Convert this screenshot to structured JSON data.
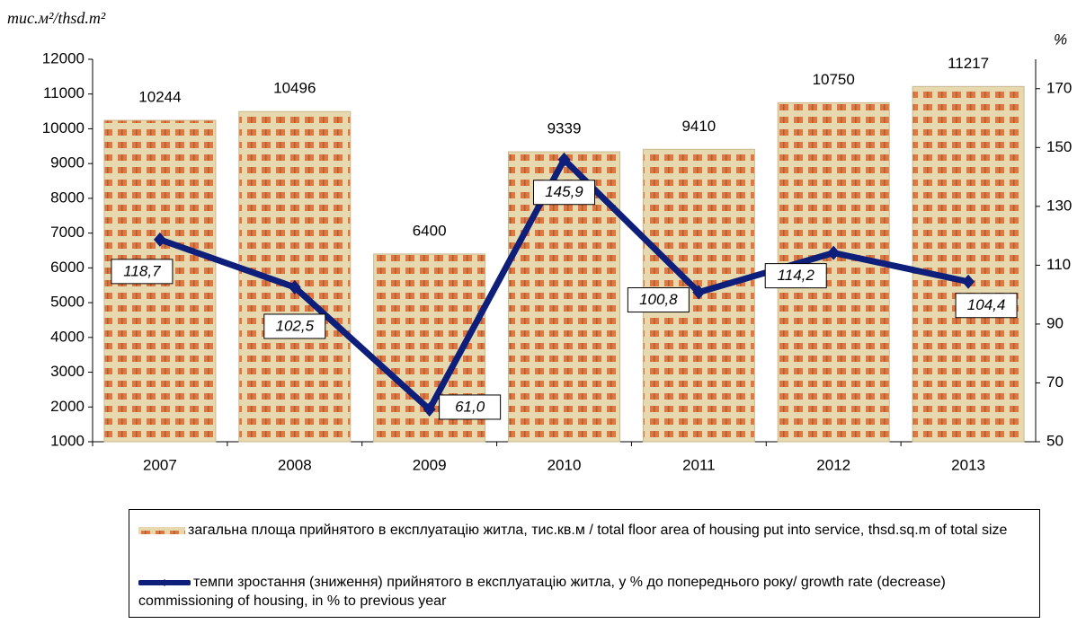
{
  "chart_data": {
    "type": "bar-line",
    "y_axis_label": "тис.м²/thsd.m²",
    "y2_axis_label": "%",
    "categories": [
      "2007",
      "2008",
      "2009",
      "2010",
      "2011",
      "2012",
      "2013"
    ],
    "series": [
      {
        "name": "загальна площа  прийнятого в експлуатацію житла, тис.кв.м / total floor area of housing put into service, thsd.sq.m of total size",
        "type": "bar",
        "color": "#e8743b",
        "values": [
          10244,
          10496,
          6400,
          9339,
          9410,
          10750,
          11217
        ]
      },
      {
        "name": "темпи зростання (зниження) прийнятого в експлуатацію житла, у % до попереднього року/ growth rate (decrease)  commissioning of housing, in % to previous year",
        "type": "line",
        "axis": "y2",
        "color": "#0d1f7a",
        "values": [
          118.7,
          102.5,
          61.0,
          145.9,
          100.8,
          114.2,
          104.4
        ],
        "value_labels": [
          "118,7",
          "102,5",
          "61,0",
          "145,9",
          "100,8",
          "114,2",
          "104,4"
        ]
      }
    ],
    "ylim": [
      1000,
      12000
    ],
    "yticks": [
      1000,
      2000,
      3000,
      4000,
      5000,
      6000,
      7000,
      8000,
      9000,
      10000,
      11000,
      12000
    ],
    "y2lim": [
      50,
      180
    ],
    "y2ticks": [
      50,
      70,
      90,
      110,
      130,
      150,
      170
    ],
    "legend": "bottom"
  }
}
